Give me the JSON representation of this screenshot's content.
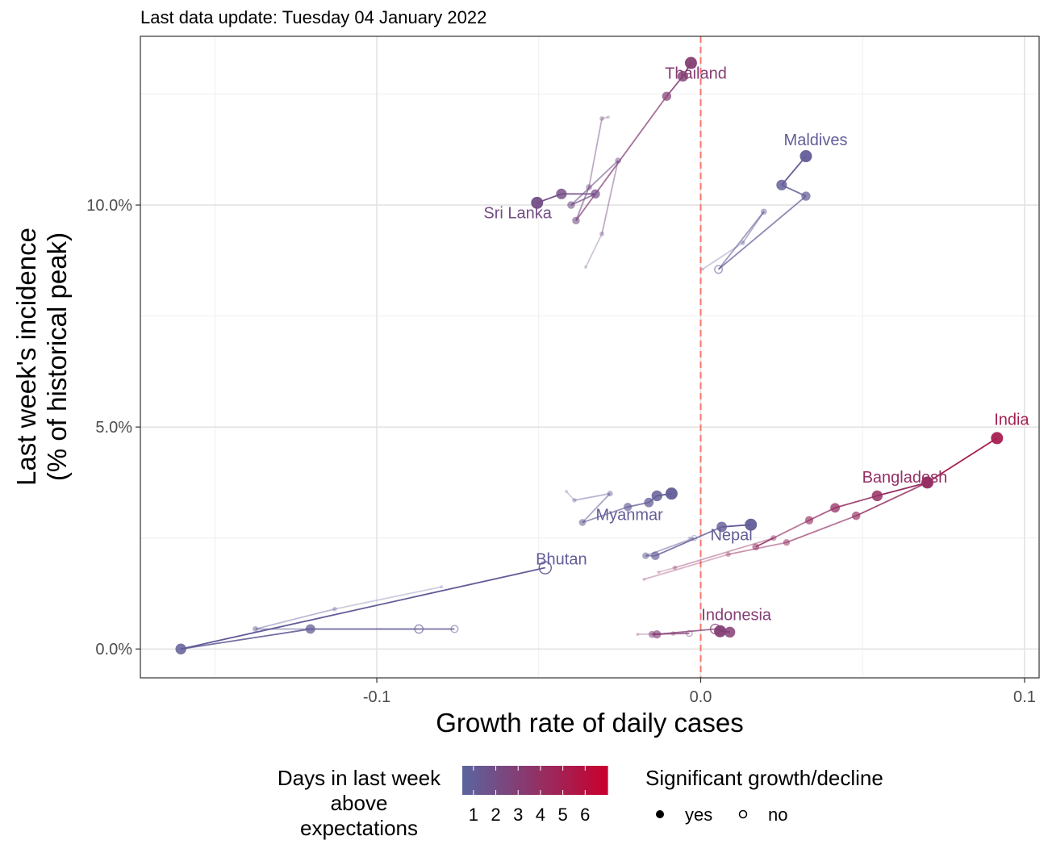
{
  "chart_data": {
    "type": "scatter",
    "subtitle": "Last data update: Tuesday 04 January 2022",
    "xlabel": "Growth rate of daily cases",
    "ylabel_line1": "Last week's incidence",
    "ylabel_line2": "(% of historical peak)",
    "xlim": [
      -0.173,
      0.1045
    ],
    "ylim": [
      -0.0065,
      0.138
    ],
    "x_ticks": [
      {
        "value": -0.1,
        "label": "-0.1"
      },
      {
        "value": 0.0,
        "label": "0.0"
      },
      {
        "value": 0.1,
        "label": "0.1"
      }
    ],
    "x_minor": [
      -0.15,
      -0.05,
      0.05
    ],
    "y_ticks": [
      {
        "value": 0.0,
        "label": "0.0%"
      },
      {
        "value": 0.05,
        "label": "5.0%"
      },
      {
        "value": 0.1,
        "label": "10.0%"
      }
    ],
    "y_minor": [
      0.025,
      0.075,
      0.125
    ],
    "grid": true,
    "reference_line": {
      "x": 0.0,
      "color": "#f8766d",
      "style": "dashed"
    },
    "legend": {
      "position": "bottom",
      "color_title_lines": [
        "Days in last week",
        "above",
        "expectations"
      ],
      "color_scale": {
        "low": "#5a65a0",
        "high": "#c8002e",
        "min": 0.5,
        "max": 7
      },
      "color_labels": [
        "1",
        "2",
        "3",
        "4",
        "5",
        "6"
      ],
      "shape_title": "Significant growth/decline",
      "shape_items": [
        {
          "label": "yes",
          "filled": true
        },
        {
          "label": "no",
          "filled": false
        }
      ]
    },
    "series": [
      {
        "name": "Thailand",
        "label_pos": [
          -0.0015,
          0.1285
        ],
        "points": [
          {
            "x": -0.0285,
            "y": 0.1198,
            "days": 2,
            "sig": true
          },
          {
            "x": -0.0305,
            "y": 0.1195,
            "days": 2,
            "sig": true
          },
          {
            "x": -0.0345,
            "y": 0.104,
            "days": 2,
            "sig": true
          },
          {
            "x": -0.0385,
            "y": 0.0965,
            "days": 2,
            "sig": true
          },
          {
            "x": -0.0105,
            "y": 0.1245,
            "days": 3,
            "sig": true
          },
          {
            "x": -0.0055,
            "y": 0.129,
            "days": 3,
            "sig": true
          },
          {
            "x": -0.003,
            "y": 0.132,
            "days": 3,
            "sig": true
          }
        ]
      },
      {
        "name": "Sri Lanka",
        "label_pos": [
          -0.0565,
          0.097
        ],
        "points": [
          {
            "x": -0.0355,
            "y": 0.086,
            "days": 2,
            "sig": true
          },
          {
            "x": -0.0305,
            "y": 0.0935,
            "days": 2,
            "sig": true
          },
          {
            "x": -0.0255,
            "y": 0.11,
            "days": 2,
            "sig": true
          },
          {
            "x": -0.04,
            "y": 0.1,
            "days": 2,
            "sig": true
          },
          {
            "x": -0.0325,
            "y": 0.1025,
            "days": 2,
            "sig": true
          },
          {
            "x": -0.043,
            "y": 0.1025,
            "days": 2,
            "sig": true
          },
          {
            "x": -0.0505,
            "y": 0.1005,
            "days": 2,
            "sig": true
          }
        ]
      },
      {
        "name": "Maldives",
        "label_pos": [
          0.0355,
          0.1135
        ],
        "points": [
          {
            "x": 0.0005,
            "y": 0.0855,
            "days": 1,
            "sig": true
          },
          {
            "x": 0.013,
            "y": 0.0915,
            "days": 1,
            "sig": true
          },
          {
            "x": 0.0195,
            "y": 0.0985,
            "days": 1,
            "sig": true
          },
          {
            "x": 0.0055,
            "y": 0.0855,
            "days": 1,
            "sig": false
          },
          {
            "x": 0.0325,
            "y": 0.102,
            "days": 1,
            "sig": true
          },
          {
            "x": 0.025,
            "y": 0.1045,
            "days": 1,
            "sig": true
          },
          {
            "x": 0.0325,
            "y": 0.111,
            "days": 1,
            "sig": true
          }
        ]
      },
      {
        "name": "Myanmar",
        "label_pos": [
          -0.022,
          0.029
        ],
        "points": [
          {
            "x": -0.0415,
            "y": 0.0355,
            "days": 1,
            "sig": true
          },
          {
            "x": -0.039,
            "y": 0.0335,
            "days": 1,
            "sig": true
          },
          {
            "x": -0.028,
            "y": 0.035,
            "days": 1,
            "sig": true
          },
          {
            "x": -0.0365,
            "y": 0.0285,
            "days": 1,
            "sig": true
          },
          {
            "x": -0.0225,
            "y": 0.032,
            "days": 1,
            "sig": true
          },
          {
            "x": -0.016,
            "y": 0.033,
            "days": 1,
            "sig": true
          },
          {
            "x": -0.0135,
            "y": 0.0345,
            "days": 1,
            "sig": true
          },
          {
            "x": -0.009,
            "y": 0.035,
            "days": 1,
            "sig": true
          }
        ]
      },
      {
        "name": "Nepal",
        "label_pos": [
          0.0095,
          0.0245
        ],
        "points": [
          {
            "x": -0.0035,
            "y": 0.025,
            "days": 1,
            "sig": true
          },
          {
            "x": -0.002,
            "y": 0.025,
            "days": 1,
            "sig": false
          },
          {
            "x": -0.017,
            "y": 0.021,
            "days": 1,
            "sig": true
          },
          {
            "x": -0.014,
            "y": 0.021,
            "days": 1,
            "sig": true
          },
          {
            "x": 0.0065,
            "y": 0.0275,
            "days": 1,
            "sig": true
          },
          {
            "x": 0.0155,
            "y": 0.028,
            "days": 1,
            "sig": true
          }
        ]
      },
      {
        "name": "Bhutan",
        "label_pos": [
          -0.043,
          0.019
        ],
        "points": [
          {
            "x": -0.08,
            "y": 0.014,
            "days": 1,
            "sig": true
          },
          {
            "x": -0.113,
            "y": 0.009,
            "days": 1,
            "sig": true
          },
          {
            "x": -0.1375,
            "y": 0.0045,
            "days": 1,
            "sig": true
          },
          {
            "x": -0.076,
            "y": 0.0045,
            "days": 1,
            "sig": false
          },
          {
            "x": -0.087,
            "y": 0.0045,
            "days": 1,
            "sig": false
          },
          {
            "x": -0.1205,
            "y": 0.0045,
            "days": 1,
            "sig": true
          },
          {
            "x": -0.1605,
            "y": 0.0,
            "days": 1,
            "sig": true
          },
          {
            "x": -0.048,
            "y": 0.0183,
            "days": 1,
            "sig": false
          }
        ]
      },
      {
        "name": "India",
        "label_pos": [
          0.096,
          0.0505
        ],
        "points": [
          {
            "x": -0.0175,
            "y": 0.0157,
            "days": 4,
            "sig": true
          },
          {
            "x": 0.0085,
            "y": 0.0213,
            "days": 4,
            "sig": true
          },
          {
            "x": 0.0265,
            "y": 0.024,
            "days": 4,
            "sig": true
          },
          {
            "x": 0.048,
            "y": 0.03,
            "days": 4,
            "sig": true
          },
          {
            "x": 0.07,
            "y": 0.0375,
            "days": 4,
            "sig": true
          },
          {
            "x": 0.0915,
            "y": 0.0475,
            "days": 5,
            "sig": true
          }
        ]
      },
      {
        "name": "Bangladesh",
        "label_pos": [
          0.063,
          0.0375
        ],
        "points": [
          {
            "x": -0.013,
            "y": 0.0173,
            "days": 4,
            "sig": true
          },
          {
            "x": -0.008,
            "y": 0.0183,
            "days": 4,
            "sig": true
          },
          {
            "x": 0.0225,
            "y": 0.025,
            "days": 4,
            "sig": true
          },
          {
            "x": 0.017,
            "y": 0.023,
            "days": 4,
            "sig": true
          },
          {
            "x": 0.0335,
            "y": 0.029,
            "days": 4,
            "sig": true
          },
          {
            "x": 0.0415,
            "y": 0.0318,
            "days": 4,
            "sig": true
          },
          {
            "x": 0.0545,
            "y": 0.0345,
            "days": 4,
            "sig": true
          },
          {
            "x": 0.07,
            "y": 0.0375,
            "days": 4,
            "sig": true
          }
        ]
      },
      {
        "name": "Indonesia",
        "label_pos": [
          0.011,
          0.0065
        ],
        "points": [
          {
            "x": -0.0195,
            "y": 0.0033,
            "days": 3,
            "sig": true
          },
          {
            "x": -0.0085,
            "y": 0.0035,
            "days": 3,
            "sig": true
          },
          {
            "x": -0.0035,
            "y": 0.0035,
            "days": 3,
            "sig": false
          },
          {
            "x": -0.015,
            "y": 0.0033,
            "days": 3,
            "sig": true
          },
          {
            "x": -0.0135,
            "y": 0.0033,
            "days": 3,
            "sig": true
          },
          {
            "x": 0.0045,
            "y": 0.0045,
            "days": 3,
            "sig": false
          },
          {
            "x": 0.009,
            "y": 0.0038,
            "days": 3,
            "sig": true
          },
          {
            "x": 0.006,
            "y": 0.004,
            "days": 3,
            "sig": true
          }
        ]
      }
    ]
  }
}
